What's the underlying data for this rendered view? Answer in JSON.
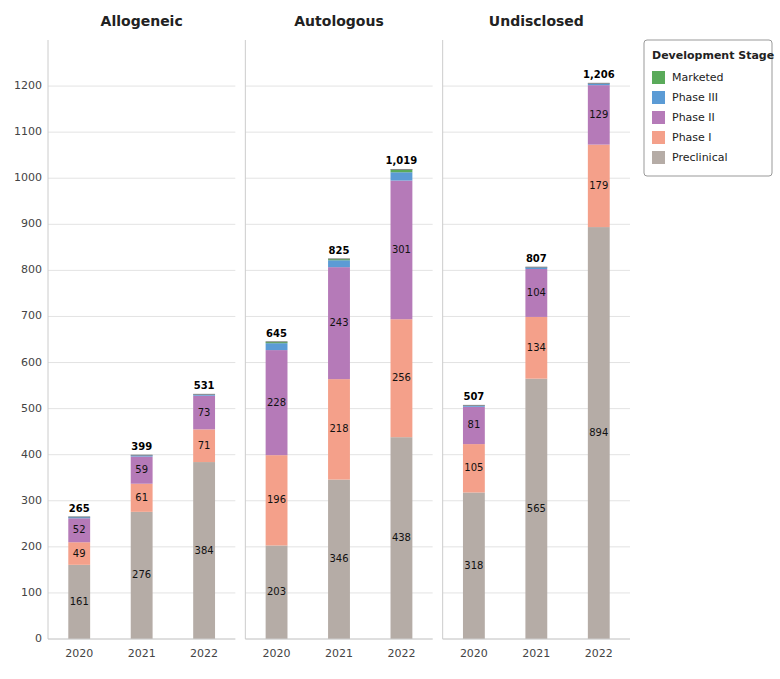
{
  "chart_data": [
    {
      "type": "bar",
      "stacked": true,
      "title": "Allogeneic",
      "categories": [
        "2020",
        "2021",
        "2022"
      ],
      "series": [
        {
          "name": "Preclinical",
          "color": "#b5aca6",
          "values": [
            161,
            276,
            384
          ],
          "data_labels": true
        },
        {
          "name": "Phase I",
          "color": "#f4a08a",
          "values": [
            49,
            61,
            71
          ],
          "data_labels": true
        },
        {
          "name": "Phase II",
          "color": "#b57ab8",
          "values": [
            52,
            59,
            73
          ],
          "data_labels": true
        },
        {
          "name": "Phase III",
          "color": "#5b9bd5",
          "values": [
            3,
            3,
            3
          ],
          "data_labels": false
        },
        {
          "name": "Marketed",
          "color": "#5aaa5a",
          "values": [
            0,
            0,
            0
          ],
          "data_labels": false
        }
      ],
      "totals": [
        265,
        399,
        531
      ],
      "total_labels": [
        "265",
        "399",
        "531"
      ],
      "ylim": [
        0,
        1300
      ],
      "yticks": [
        0,
        100,
        200,
        300,
        400,
        500,
        600,
        700,
        800,
        900,
        1000,
        1100,
        1200
      ],
      "grid": true
    },
    {
      "type": "bar",
      "stacked": true,
      "title": "Autologous",
      "categories": [
        "2020",
        "2021",
        "2022"
      ],
      "series": [
        {
          "name": "Preclinical",
          "color": "#b5aca6",
          "values": [
            203,
            346,
            438
          ],
          "data_labels": true
        },
        {
          "name": "Phase I",
          "color": "#f4a08a",
          "values": [
            196,
            218,
            256
          ],
          "data_labels": true
        },
        {
          "name": "Phase II",
          "color": "#b57ab8",
          "values": [
            228,
            243,
            301
          ],
          "data_labels": true
        },
        {
          "name": "Phase III",
          "color": "#5b9bd5",
          "values": [
            15,
            15,
            18
          ],
          "data_labels": false
        },
        {
          "name": "Marketed",
          "color": "#5aaa5a",
          "values": [
            3,
            3,
            6
          ],
          "data_labels": false
        }
      ],
      "totals": [
        645,
        825,
        1019
      ],
      "total_labels": [
        "645",
        "825",
        "1,019"
      ],
      "ylim": [
        0,
        1300
      ],
      "yticks": [
        0,
        100,
        200,
        300,
        400,
        500,
        600,
        700,
        800,
        900,
        1000,
        1100,
        1200
      ],
      "grid": true,
      "tick_labels": "x"
    },
    {
      "type": "bar",
      "stacked": true,
      "title": "Undisclosed",
      "categories": [
        "2020",
        "2021",
        "2022"
      ],
      "series": [
        {
          "name": "Preclinical",
          "color": "#b5aca6",
          "values": [
            318,
            565,
            894
          ],
          "data_labels": true
        },
        {
          "name": "Phase I",
          "color": "#f4a08a",
          "values": [
            105,
            134,
            179
          ],
          "data_labels": true
        },
        {
          "name": "Phase II",
          "color": "#b57ab8",
          "values": [
            81,
            104,
            129
          ],
          "data_labels": true
        },
        {
          "name": "Phase III",
          "color": "#5b9bd5",
          "values": [
            3,
            4,
            4
          ],
          "data_labels": false
        },
        {
          "name": "Marketed",
          "color": "#5aaa5a",
          "values": [
            0,
            0,
            0
          ],
          "data_labels": false
        }
      ],
      "totals": [
        507,
        807,
        1206
      ],
      "total_labels": [
        "507",
        "807",
        "1,206"
      ],
      "ylim": [
        0,
        1300
      ],
      "yticks": [
        0,
        100,
        200,
        300,
        400,
        500,
        600,
        700,
        800,
        900,
        1000,
        1100,
        1200
      ],
      "grid": true,
      "tick_labels": "x",
      "legend": "right",
      "legend_title": "Development Stage"
    }
  ]
}
